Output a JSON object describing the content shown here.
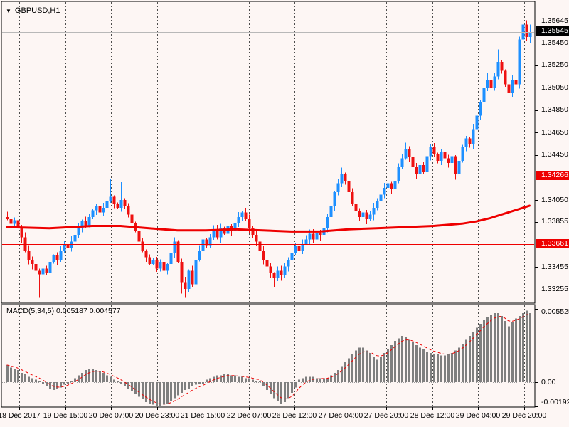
{
  "ui": {
    "symbol_label": "GBPUSD,H1",
    "dropdown_icon": "▼",
    "macd_label": "MACD(5,34,5) 0.005187 0.004577",
    "current_price": "1.35545",
    "hline_labels": [
      "1.34266",
      "1.33661"
    ],
    "macd_axis": [
      "0.005525",
      "0.00",
      "-0.00192"
    ]
  },
  "colors": {
    "background": "#fdf6f4",
    "panel_border": "#000000",
    "bull": "#1e90ff",
    "bear": "#ee1111",
    "line_red": "#ee0000",
    "ma_red": "#ee0000",
    "histogram_gray": "#7f7f7f",
    "grid": "#4d4d4d",
    "current_price_line": "#b8b8b8",
    "current_price_box": "#000000",
    "hline_box": "#ee0000"
  },
  "chart_data": [
    {
      "type": "candlestick",
      "title": "GBPUSD,H1",
      "symbol": "GBPUSD",
      "timeframe": "H1",
      "x_labels": [
        "18 Dec 2017",
        "19 Dec 15:00",
        "20 Dec 07:00",
        "20 Dec 23:00",
        "21 Dec 15:00",
        "22 Dec 07:00",
        "26 Dec 12:00",
        "27 Dec 04:00",
        "27 Dec 20:00",
        "28 Dec 12:00",
        "29 Dec 04:00",
        "29 Dec 20:00"
      ],
      "y_tick_labels": [
        "1.35645",
        "1.35450",
        "1.35250",
        "1.35050",
        "1.34850",
        "1.34650",
        "1.34450",
        "1.34050",
        "1.33855",
        "1.33455",
        "1.33255"
      ],
      "y_range_top": 1.3578,
      "y_range_bottom": 1.3315,
      "current_price": 1.35545,
      "horizontal_lines": [
        1.34266,
        1.33661
      ],
      "grid": true,
      "first_open": 1.339,
      "closes": [
        1.3388,
        1.3384,
        1.3387,
        1.338,
        1.3372,
        1.336,
        1.3352,
        1.3348,
        1.3342,
        1.3339,
        1.3344,
        1.334,
        1.335,
        1.3356,
        1.3352,
        1.336,
        1.3366,
        1.3362,
        1.3368,
        1.3374,
        1.338,
        1.3386,
        1.3382,
        1.339,
        1.3396,
        1.34,
        1.3394,
        1.3398,
        1.3404,
        1.3408,
        1.3402,
        1.3398,
        1.3405,
        1.34,
        1.3392,
        1.3385,
        1.3378,
        1.3368,
        1.336,
        1.3354,
        1.3348,
        1.3352,
        1.3344,
        1.335,
        1.3342,
        1.3348,
        1.3358,
        1.3368,
        1.335,
        1.3332,
        1.3326,
        1.3342,
        1.333,
        1.3352,
        1.336,
        1.337,
        1.3365,
        1.3372,
        1.3378,
        1.3372,
        1.338,
        1.3375,
        1.3382,
        1.3378,
        1.3385,
        1.339,
        1.3394,
        1.3388,
        1.338,
        1.3374,
        1.3368,
        1.336,
        1.3352,
        1.3346,
        1.334,
        1.3336,
        1.3342,
        1.3338,
        1.3346,
        1.3352,
        1.3358,
        1.3364,
        1.336,
        1.3366,
        1.337,
        1.3375,
        1.337,
        1.3376,
        1.3374,
        1.338,
        1.339,
        1.34,
        1.3412,
        1.342,
        1.3428,
        1.3422,
        1.3412,
        1.3402,
        1.3395,
        1.339,
        1.3394,
        1.3388,
        1.3392,
        1.3398,
        1.3404,
        1.341,
        1.3416,
        1.342,
        1.3415,
        1.3422,
        1.3435,
        1.3442,
        1.345,
        1.3443,
        1.3435,
        1.3428,
        1.3436,
        1.343,
        1.3444,
        1.3452,
        1.3446,
        1.344,
        1.3448,
        1.3442,
        1.3438,
        1.3444,
        1.3428,
        1.344,
        1.3452,
        1.346,
        1.3455,
        1.3468,
        1.348,
        1.3492,
        1.3505,
        1.3512,
        1.3505,
        1.3515,
        1.3528,
        1.352,
        1.3508,
        1.35,
        1.3512,
        1.3508,
        1.3548,
        1.3561,
        1.355,
        1.35545
      ],
      "wick_overrides": {
        "9": {
          "l": 1.3318
        },
        "29": {
          "h": 1.3424
        },
        "32": {
          "h": 1.3421
        },
        "46": {
          "h": 1.3374
        },
        "49": {
          "l": 1.3322
        },
        "50": {
          "l": 1.3318
        },
        "75": {
          "l": 1.3328
        },
        "94": {
          "h": 1.3434
        },
        "112": {
          "h": 1.3456
        },
        "135": {
          "h": 1.3518
        },
        "138": {
          "h": 1.3539
        },
        "141": {
          "l": 1.3489
        },
        "145": {
          "h": 1.35645
        },
        "147": {
          "h": 1.3561
        }
      },
      "ma_line_points": [
        [
          0,
          1.3381
        ],
        [
          12,
          1.338
        ],
        [
          24,
          1.3382
        ],
        [
          32,
          1.3382
        ],
        [
          40,
          1.338
        ],
        [
          48,
          1.3378
        ],
        [
          56,
          1.3378
        ],
        [
          64,
          1.3379
        ],
        [
          72,
          1.3378
        ],
        [
          80,
          1.3377
        ],
        [
          88,
          1.3377
        ],
        [
          96,
          1.3379
        ],
        [
          104,
          1.338
        ],
        [
          112,
          1.3381
        ],
        [
          120,
          1.3382
        ],
        [
          128,
          1.3384
        ],
        [
          132,
          1.3386
        ],
        [
          136,
          1.3389
        ],
        [
          140,
          1.3393
        ],
        [
          144,
          1.3397
        ],
        [
          147,
          1.34
        ]
      ]
    },
    {
      "type": "bar",
      "title": "MACD(5,34,5)",
      "current_value": 0.005187,
      "signal_current": 0.004577,
      "signal_period": 5,
      "y_tick_labels": [
        "0.005525",
        "0.00",
        "-0.00192"
      ],
      "ylim": [
        -0.00192,
        0.005525
      ],
      "value_scale": 0.0001,
      "values_1e4": [
        13,
        11,
        10,
        9,
        7,
        6,
        4,
        3,
        2,
        1,
        -1,
        -3,
        -5,
        -6,
        -5,
        -4,
        -2,
        -1,
        1,
        3,
        5,
        7,
        9,
        10,
        10,
        9,
        8,
        7,
        5,
        4,
        2,
        1,
        -1,
        -3,
        -5,
        -7,
        -9,
        -11,
        -13,
        -15,
        -16,
        -17,
        -18,
        -18,
        -17,
        -16,
        -14,
        -12,
        -10,
        -8,
        -6,
        -5,
        -3,
        -2,
        -1,
        -1,
        2,
        3,
        4,
        5,
        5,
        6,
        6,
        5,
        5,
        4,
        4,
        3,
        3,
        2,
        1,
        1,
        -3,
        -6,
        -9,
        -12,
        -14,
        -16,
        -15,
        -12,
        -8,
        -4,
        2,
        3,
        4,
        4,
        4,
        3,
        3,
        3,
        3,
        5,
        7,
        9,
        12,
        15,
        18,
        21,
        24,
        26,
        26,
        24,
        22,
        19,
        17,
        19,
        22,
        25,
        28,
        31,
        33,
        35,
        34,
        32,
        30,
        28,
        26,
        25,
        23,
        22,
        21,
        21,
        20,
        20,
        21,
        22,
        24,
        26,
        29,
        32,
        35,
        38,
        41,
        44,
        47,
        49,
        51,
        52,
        52,
        50,
        46,
        42,
        45,
        48,
        50,
        52,
        54,
        52
      ]
    }
  ]
}
